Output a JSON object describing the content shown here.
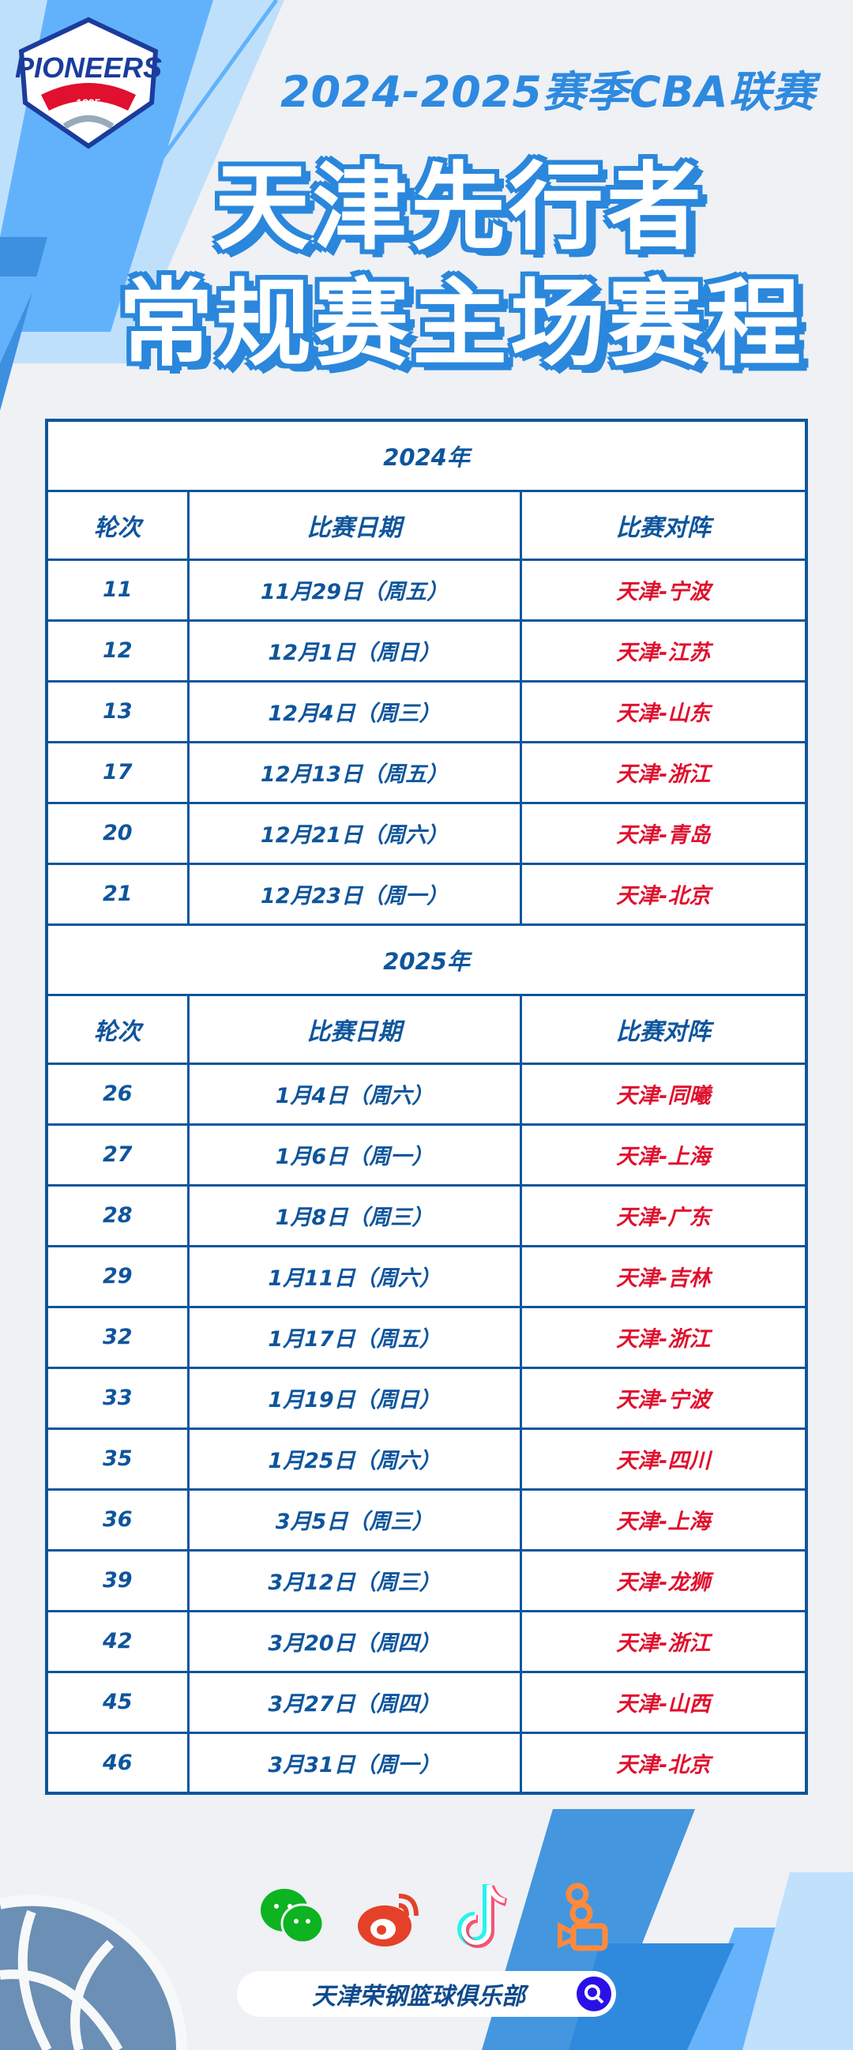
{
  "header": {
    "logo_text": "PIONEERS TIANJIN 1895",
    "season": "2024-2025赛季CBA联赛",
    "title_line1": "天津先行者",
    "title_line2": "常规赛主场赛程"
  },
  "columns": {
    "round": "轮次",
    "date": "比赛日期",
    "matchup": "比赛对阵"
  },
  "sections": [
    {
      "year": "2024年",
      "rows": [
        {
          "round": "11",
          "date": "11月29日（周五）",
          "matchup": "天津-宁波"
        },
        {
          "round": "12",
          "date": "12月1日（周日）",
          "matchup": "天津-江苏"
        },
        {
          "round": "13",
          "date": "12月4日（周三）",
          "matchup": "天津-山东"
        },
        {
          "round": "17",
          "date": "12月13日（周五）",
          "matchup": "天津-浙江"
        },
        {
          "round": "20",
          "date": "12月21日（周六）",
          "matchup": "天津-青岛"
        },
        {
          "round": "21",
          "date": "12月23日（周一）",
          "matchup": "天津-北京"
        }
      ]
    },
    {
      "year": "2025年",
      "rows": [
        {
          "round": "26",
          "date": "1月4日（周六）",
          "matchup": "天津-同曦"
        },
        {
          "round": "27",
          "date": "1月6日（周一）",
          "matchup": "天津-上海"
        },
        {
          "round": "28",
          "date": "1月8日（周三）",
          "matchup": "天津-广东"
        },
        {
          "round": "29",
          "date": "1月11日（周六）",
          "matchup": "天津-吉林"
        },
        {
          "round": "32",
          "date": "1月17日（周五）",
          "matchup": "天津-浙江"
        },
        {
          "round": "33",
          "date": "1月19日（周日）",
          "matchup": "天津-宁波"
        },
        {
          "round": "35",
          "date": "1月25日（周六）",
          "matchup": "天津-四川"
        },
        {
          "round": "36",
          "date": "3月5日（周三）",
          "matchup": "天津-上海"
        },
        {
          "round": "39",
          "date": "3月12日（周三）",
          "matchup": "天津-龙狮"
        },
        {
          "round": "42",
          "date": "3月20日（周四）",
          "matchup": "天津-浙江"
        },
        {
          "round": "45",
          "date": "3月27日（周四）",
          "matchup": "天津-山西"
        },
        {
          "round": "46",
          "date": "3月31日（周一）",
          "matchup": "天津-北京"
        }
      ]
    }
  ],
  "footer": {
    "social_icons": [
      "wechat-icon",
      "weibo-icon",
      "douyin-icon",
      "kuaishou-icon"
    ],
    "club_name": "天津荣钢篮球俱乐部"
  },
  "colors": {
    "primary": "#0e559c",
    "accent": "#2a87dc",
    "opponent": "#e0102e",
    "background": "#eff1f4"
  }
}
